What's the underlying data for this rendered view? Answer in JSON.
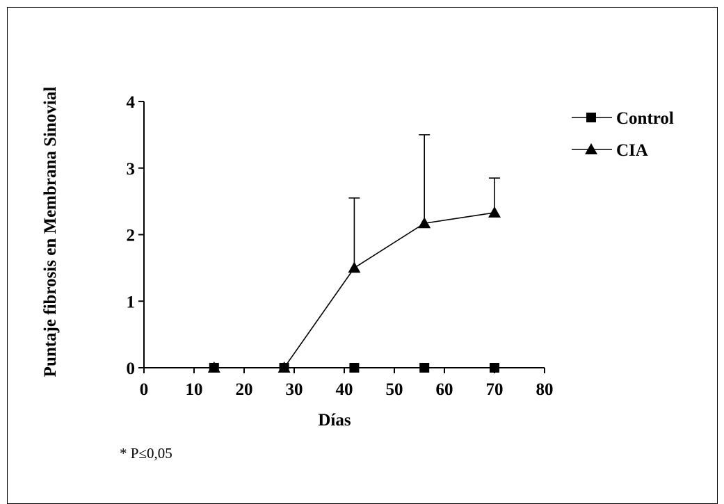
{
  "chart_data": {
    "type": "line",
    "xlabel": "Días",
    "ylabel": "Puntaje fibrosis en Membrana Sinovial",
    "xlim": [
      0,
      80
    ],
    "ylim": [
      0,
      4
    ],
    "xticks": [
      0,
      10,
      20,
      30,
      40,
      50,
      60,
      70,
      80
    ],
    "yticks": [
      0,
      1,
      2,
      3,
      4
    ],
    "grid": false,
    "legend_position": "top-right",
    "series": [
      {
        "name": "Control",
        "marker": "square",
        "color": "#000000",
        "points": [
          {
            "x": 14,
            "y": 0,
            "err": 0
          },
          {
            "x": 28,
            "y": 0,
            "err": 0
          },
          {
            "x": 42,
            "y": 0,
            "err": 0
          },
          {
            "x": 56,
            "y": 0,
            "err": 0
          },
          {
            "x": 70,
            "y": 0,
            "err": 0
          }
        ]
      },
      {
        "name": "CIA",
        "marker": "triangle",
        "color": "#000000",
        "points": [
          {
            "x": 14,
            "y": 0,
            "err": 0
          },
          {
            "x": 28,
            "y": 0,
            "err": 0
          },
          {
            "x": 42,
            "y": 1.5,
            "err": 1.05
          },
          {
            "x": 56,
            "y": 2.17,
            "err": 1.33
          },
          {
            "x": 70,
            "y": 2.33,
            "err": 0.52
          }
        ]
      }
    ],
    "annotations": [
      "* P≤0,05"
    ]
  }
}
